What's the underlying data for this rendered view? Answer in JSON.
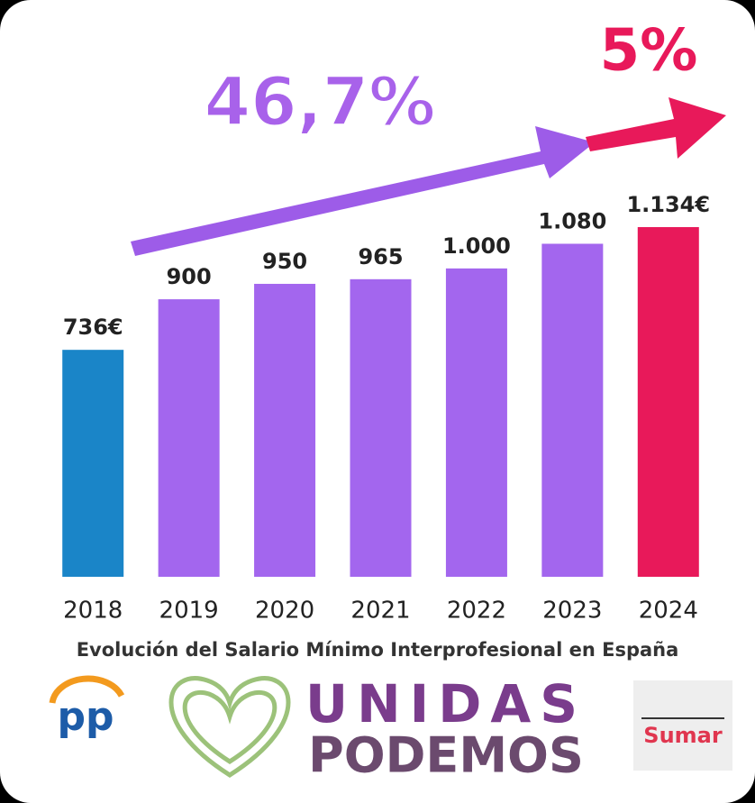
{
  "chart_data": {
    "type": "bar",
    "subtitle": "Evolución del Salario Mínimo Interprofesional en España",
    "categories": [
      "2018",
      "2019",
      "2020",
      "2021",
      "2022",
      "2023",
      "2024"
    ],
    "values": [
      736,
      900,
      950,
      965,
      1000,
      1080,
      1134
    ],
    "value_labels": [
      "736€",
      "900",
      "950",
      "965",
      "1.000",
      "1.080",
      "1.134€"
    ],
    "colors": [
      "#1a85c8",
      "#a366ee",
      "#a366ee",
      "#a366ee",
      "#a366ee",
      "#a366ee",
      "#e8195a"
    ],
    "annotations": [
      "46,7%",
      "5%"
    ],
    "logos": [
      "pp",
      "UNIDAS",
      "PODEMOS",
      "Sumar"
    ]
  }
}
